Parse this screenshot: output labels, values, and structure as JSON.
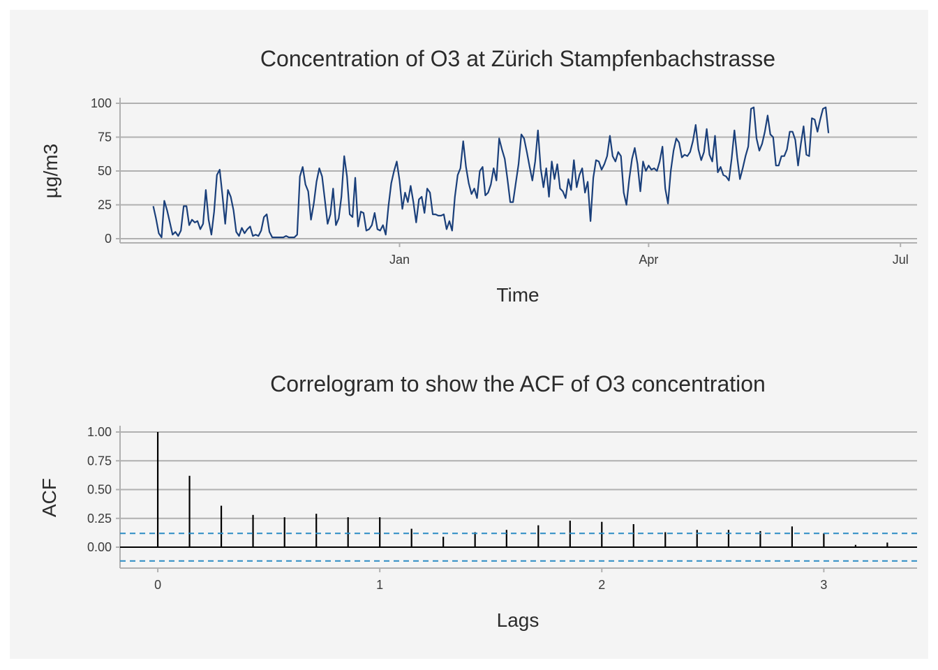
{
  "colors": {
    "background": "#f4f4f4",
    "series_line": "#1a3f7a",
    "acf_bar": "#000000",
    "ci_line": "#2b8cc4"
  },
  "chart_data": [
    {
      "type": "line",
      "title": "Concentration of O3 at Zürich Stampfenbachstrasse",
      "xlabel": "Time",
      "ylabel": "µg/m3",
      "ylim": [
        0,
        100
      ],
      "yticks": [
        0,
        25,
        50,
        75,
        100
      ],
      "ytick_labels": [
        "0",
        "25",
        "50",
        "75",
        "100"
      ],
      "xticks": [
        {
          "date": "2018-01-01",
          "label": "Jan"
        },
        {
          "date": "2018-04-01",
          "label": "Apr"
        },
        {
          "date": "2018-07-01",
          "label": "Jul"
        }
      ],
      "xlim": [
        "2017-09-22",
        "2018-07-07"
      ],
      "grid": true,
      "series": [
        {
          "start_date": "2017-10-04",
          "values": [
            24,
            15,
            4,
            1,
            28,
            21,
            12,
            3,
            5,
            2,
            6,
            24,
            24,
            10,
            14,
            12,
            13,
            7,
            11,
            36,
            14,
            3,
            20,
            47,
            51,
            32,
            11,
            36,
            31,
            21,
            5,
            2,
            8,
            4,
            7,
            9,
            2,
            3,
            2,
            6,
            16,
            18,
            5,
            1,
            1,
            1,
            1,
            1,
            2,
            1,
            1,
            1,
            3,
            46,
            53,
            40,
            35,
            14,
            26,
            42,
            52,
            46,
            29,
            11,
            18,
            37,
            10,
            15,
            31,
            61,
            46,
            18,
            16,
            45,
            9,
            20,
            19,
            6,
            7,
            10,
            19,
            7,
            6,
            10,
            3,
            24,
            41,
            50,
            57,
            43,
            22,
            34,
            27,
            39,
            27,
            12,
            29,
            31,
            19,
            37,
            34,
            18,
            18,
            17,
            17,
            18,
            7,
            13,
            6,
            31,
            47,
            52,
            72,
            53,
            41,
            33,
            37,
            30,
            50,
            53,
            32,
            34,
            40,
            52,
            43,
            74,
            66,
            59,
            44,
            27,
            27,
            41,
            55,
            77,
            74,
            64,
            53,
            43,
            57,
            80,
            52,
            38,
            52,
            31,
            57,
            44,
            55,
            37,
            35,
            30,
            44,
            36,
            58,
            38,
            47,
            52,
            34,
            42,
            13,
            45,
            58,
            57,
            51,
            55,
            61,
            76,
            61,
            57,
            64,
            61,
            34,
            25,
            44,
            59,
            67,
            55,
            35,
            57,
            50,
            54,
            51,
            52,
            50,
            57,
            68,
            37,
            26,
            50,
            65,
            74,
            71,
            60,
            62,
            61,
            64,
            72,
            84,
            66,
            58,
            64,
            81,
            62,
            57,
            76,
            49,
            53,
            47,
            46,
            43,
            59,
            80,
            60,
            44,
            52,
            61,
            68,
            96,
            97,
            74,
            65,
            70,
            79,
            91,
            77,
            75,
            54,
            54,
            61,
            61,
            66,
            79,
            79,
            73,
            54,
            70,
            83,
            62,
            61,
            89,
            88,
            79,
            88,
            96,
            97,
            78
          ]
        }
      ]
    },
    {
      "type": "bar",
      "title": "Correlogram to show the ACF of O3 concentration",
      "xlabel": "Lags",
      "ylabel": "ACF",
      "xlim": [
        -0.17,
        3.42
      ],
      "ylim": [
        -0.17,
        1.05
      ],
      "xticks": [
        0,
        1,
        2,
        3
      ],
      "xtick_labels": [
        "0",
        "1",
        "2",
        "3"
      ],
      "yticks": [
        0,
        0.25,
        0.5,
        0.75,
        1
      ],
      "ytick_labels": [
        "0.00",
        "0.25",
        "0.50",
        "0.75",
        "1.00"
      ],
      "grid": true,
      "confidence_bound": 0.12,
      "lags": [
        0,
        0.143,
        0.286,
        0.429,
        0.571,
        0.714,
        0.857,
        1.0,
        1.143,
        1.286,
        1.429,
        1.571,
        1.714,
        1.857,
        2.0,
        2.143,
        2.286,
        2.429,
        2.571,
        2.714,
        2.857,
        3.0,
        3.143,
        3.286
      ],
      "values": [
        1.0,
        0.62,
        0.36,
        0.28,
        0.26,
        0.29,
        0.26,
        0.26,
        0.16,
        0.09,
        0.13,
        0.15,
        0.19,
        0.23,
        0.22,
        0.2,
        0.13,
        0.15,
        0.15,
        0.14,
        0.18,
        0.12,
        0.02,
        0.04
      ]
    }
  ]
}
